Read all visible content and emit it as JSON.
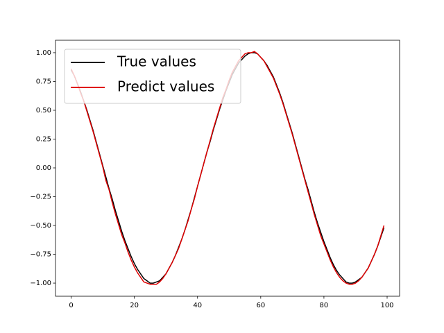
{
  "chart_data": {
    "type": "line",
    "x": [
      0,
      1,
      2,
      3,
      4,
      5,
      6,
      7,
      8,
      9,
      10,
      11,
      12,
      13,
      14,
      15,
      16,
      17,
      18,
      19,
      20,
      21,
      22,
      23,
      24,
      25,
      26,
      27,
      28,
      29,
      30,
      31,
      32,
      33,
      34,
      35,
      36,
      37,
      38,
      39,
      40,
      41,
      42,
      43,
      44,
      45,
      46,
      47,
      48,
      49,
      50,
      51,
      52,
      53,
      54,
      55,
      56,
      57,
      58,
      59,
      60,
      61,
      62,
      63,
      64,
      65,
      66,
      67,
      68,
      69,
      70,
      71,
      72,
      73,
      74,
      75,
      76,
      77,
      78,
      79,
      80,
      81,
      82,
      83,
      84,
      85,
      86,
      87,
      88,
      89,
      90,
      91,
      92,
      93,
      94,
      95,
      96,
      97,
      98,
      99
    ],
    "series": [
      {
        "name": "True values",
        "color": "#000000",
        "values": [
          0.85,
          0.8,
          0.73,
          0.66,
          0.58,
          0.5,
          0.41,
          0.32,
          0.22,
          0.12,
          0.02,
          -0.08,
          -0.18,
          -0.27,
          -0.37,
          -0.46,
          -0.55,
          -0.63,
          -0.7,
          -0.77,
          -0.83,
          -0.88,
          -0.92,
          -0.96,
          -0.98,
          -1.0,
          -1.0,
          -0.99,
          -0.98,
          -0.95,
          -0.92,
          -0.87,
          -0.82,
          -0.76,
          -0.69,
          -0.62,
          -0.54,
          -0.45,
          -0.36,
          -0.26,
          -0.16,
          -0.06,
          0.04,
          0.14,
          0.23,
          0.33,
          0.42,
          0.51,
          0.59,
          0.67,
          0.74,
          0.81,
          0.86,
          0.91,
          0.94,
          0.97,
          0.99,
          1.0,
          1.0,
          0.99,
          0.96,
          0.93,
          0.89,
          0.84,
          0.79,
          0.72,
          0.65,
          0.57,
          0.48,
          0.39,
          0.3,
          0.2,
          0.1,
          0.0,
          -0.1,
          -0.19,
          -0.29,
          -0.39,
          -0.48,
          -0.56,
          -0.64,
          -0.71,
          -0.78,
          -0.84,
          -0.89,
          -0.93,
          -0.96,
          -0.99,
          -1.0,
          -1.0,
          -0.99,
          -0.97,
          -0.95,
          -0.91,
          -0.87,
          -0.81,
          -0.75,
          -0.68,
          -0.6,
          -0.52
        ]
      },
      {
        "name": "Predict values",
        "color": "#e00000",
        "values": [
          0.86,
          0.8,
          0.73,
          0.65,
          0.58,
          0.49,
          0.4,
          0.31,
          0.21,
          0.11,
          0.01,
          -0.11,
          -0.19,
          -0.3,
          -0.4,
          -0.49,
          -0.58,
          -0.65,
          -0.73,
          -0.8,
          -0.86,
          -0.91,
          -0.95,
          -0.99,
          -1.0,
          -1.01,
          -1.01,
          -1.01,
          -0.99,
          -0.96,
          -0.92,
          -0.87,
          -0.82,
          -0.76,
          -0.7,
          -0.62,
          -0.54,
          -0.46,
          -0.36,
          -0.27,
          -0.16,
          -0.06,
          0.04,
          0.14,
          0.24,
          0.34,
          0.43,
          0.52,
          0.61,
          0.68,
          0.76,
          0.83,
          0.88,
          0.93,
          0.96,
          0.99,
          1.0,
          1.0,
          1.01,
          0.99,
          0.96,
          0.93,
          0.88,
          0.83,
          0.78,
          0.71,
          0.64,
          0.56,
          0.47,
          0.38,
          0.29,
          0.19,
          0.09,
          -0.01,
          -0.11,
          -0.21,
          -0.31,
          -0.41,
          -0.5,
          -0.59,
          -0.66,
          -0.73,
          -0.8,
          -0.86,
          -0.91,
          -0.95,
          -0.98,
          -1.0,
          -1.01,
          -1.01,
          -1.0,
          -0.98,
          -0.95,
          -0.91,
          -0.87,
          -0.81,
          -0.75,
          -0.68,
          -0.59,
          -0.5
        ]
      }
    ],
    "xlim": [
      -4.95,
      103.95
    ],
    "ylim": [
      -1.114,
      1.108
    ],
    "xticks": [
      0,
      20,
      40,
      60,
      80,
      100
    ],
    "yticks": [
      {
        "value": -1.0,
        "label": "−1.00"
      },
      {
        "value": -0.75,
        "label": "−0.75"
      },
      {
        "value": -0.5,
        "label": "−0.50"
      },
      {
        "value": -0.25,
        "label": "−0.25"
      },
      {
        "value": 0.0,
        "label": "0.00"
      },
      {
        "value": 0.25,
        "label": "0.25"
      },
      {
        "value": 0.5,
        "label": "0.50"
      },
      {
        "value": 0.75,
        "label": "0.75"
      },
      {
        "value": 1.0,
        "label": "1.00"
      }
    ],
    "legend": "upper left"
  }
}
